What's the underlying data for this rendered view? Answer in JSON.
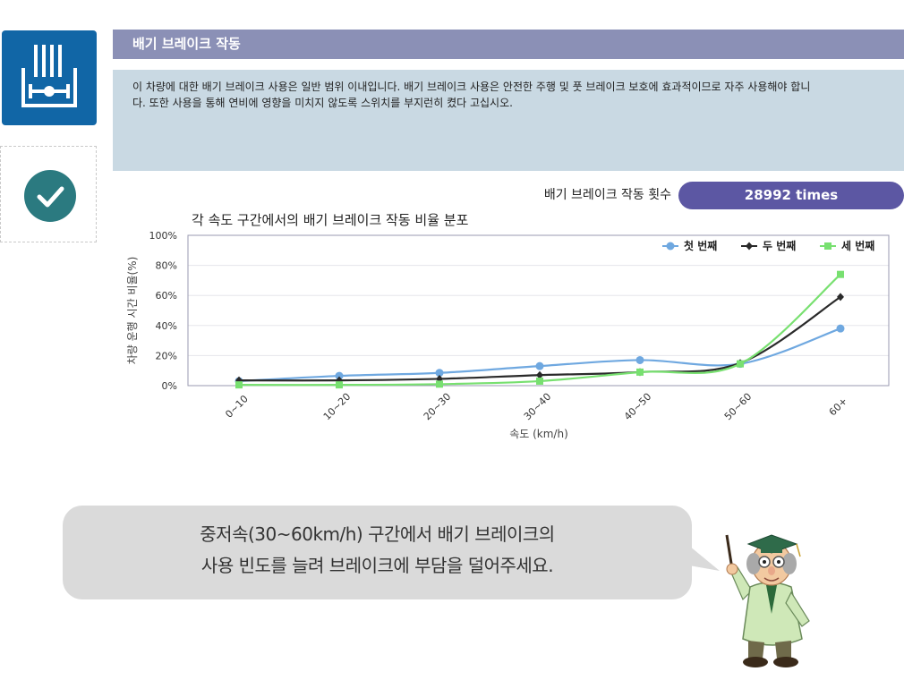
{
  "header": {
    "title": "배기 브레이크 작동"
  },
  "description": {
    "line1": "이 차량에 대한 배기 브레이크 사용은 일반 범위 이내입니다. 배기 브레이크 사용은 안전한 주행 및 풋 브레이크 보호에 효과적이므로 자주 사용해야 합니",
    "line2": "다. 또한 사용을 통해 연비에 영향을 미치지 않도록 스위치를 부지런히 켰다 고십시오."
  },
  "counter": {
    "label": "배기 브레이크 작동 횟수",
    "value": "28992 times"
  },
  "icons": {
    "logo": "exhaust-brake-icon",
    "status": "check-icon",
    "mascot": "professor-character-icon"
  },
  "colors": {
    "brand_blue": "#1166a6",
    "status_teal": "#2b7a80",
    "title_bar": "#8b90b6",
    "pill": "#5c57a3"
  },
  "advice": {
    "line1": "중저속(30~60km/h) 구간에서 배기 브레이크의",
    "line2": "사용 빈도를 늘려 브레이크에 부담을 덜어주세요."
  },
  "chart_data": {
    "type": "line",
    "title": "각 속도 구간에서의 배기 브레이크 작동 비율 분포",
    "xlabel": "속도 (km/h)",
    "ylabel": "차량 운행 시간 비율(%)",
    "categories": [
      "0~10",
      "10~20",
      "20~30",
      "30~40",
      "40~50",
      "50~60",
      "60+"
    ],
    "yticks": [
      "0%",
      "20%",
      "40%",
      "60%",
      "80%",
      "100%"
    ],
    "ylim": [
      0,
      100
    ],
    "grid": true,
    "legend_position": "top-right",
    "series": [
      {
        "name": "첫 번째",
        "color": "#6fa8e0",
        "marker": "circle",
        "values": [
          3,
          6.5,
          8.5,
          13,
          17,
          14.5,
          38
        ]
      },
      {
        "name": "두 번째",
        "color": "#2a2a2a",
        "marker": "diamond",
        "values": [
          3.5,
          3.5,
          4.5,
          7,
          9,
          15,
          59
        ]
      },
      {
        "name": "세 번째",
        "color": "#78e070",
        "marker": "square",
        "values": [
          0.5,
          0.5,
          1,
          3,
          9,
          14.5,
          74
        ]
      }
    ]
  }
}
